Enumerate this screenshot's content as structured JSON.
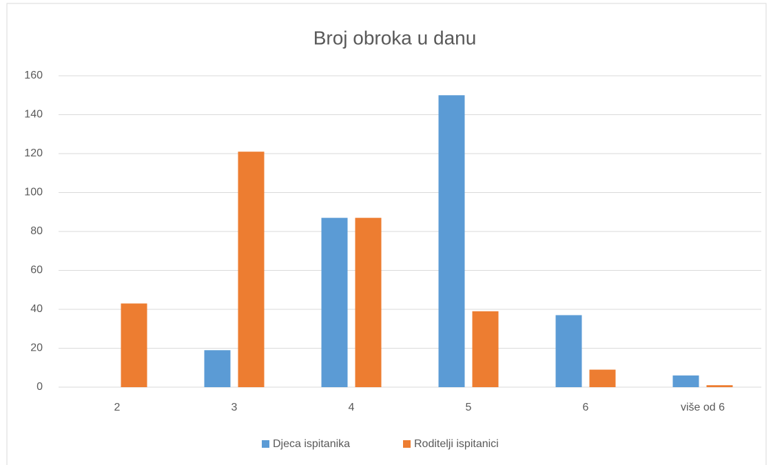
{
  "chart_data": {
    "type": "bar",
    "title": "Broj obroka u danu",
    "categories": [
      "2",
      "3",
      "4",
      "5",
      "6",
      "više od 6"
    ],
    "series": [
      {
        "name": "Djeca ispitanika",
        "color": "#5b9bd5",
        "values": [
          0,
          19,
          87,
          150,
          37,
          6
        ]
      },
      {
        "name": "Roditelji ispitanici",
        "color": "#ed7d31",
        "values": [
          43,
          121,
          87,
          39,
          9,
          1
        ]
      }
    ],
    "ylim": [
      0,
      160
    ],
    "yticks": [
      0,
      20,
      40,
      60,
      80,
      100,
      120,
      140,
      160
    ],
    "grid": true,
    "legend": "bottom"
  }
}
